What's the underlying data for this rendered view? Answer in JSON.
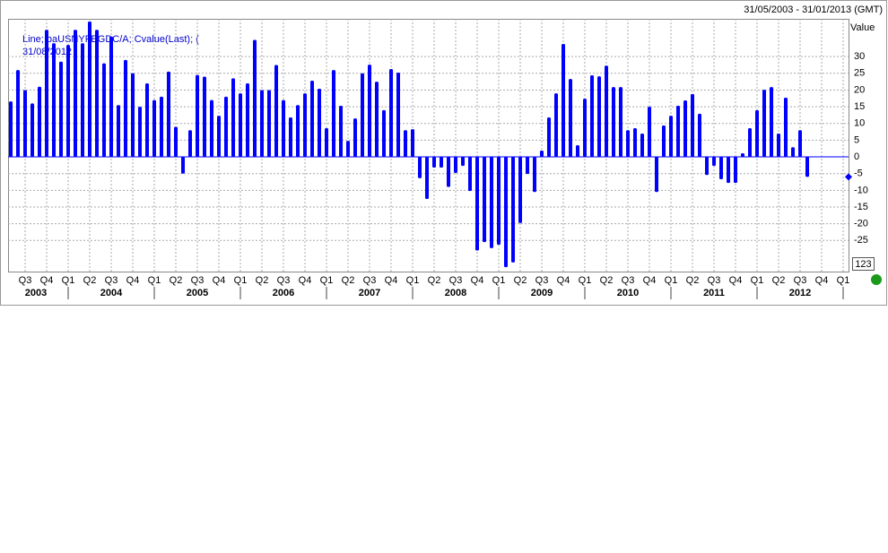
{
  "chart_data": {
    "type": "bar",
    "title": "31/05/2003 - 31/01/2013 (GMT)",
    "y_axis_label": "Value",
    "legend_lines": [
      "Line; baUSNYFEGDC/A; Cvalue(Last); (",
      "31/08/2012"
    ],
    "button_label": "123",
    "color": "#0000ff",
    "values": [
      16.6,
      26,
      20,
      16,
      21,
      38,
      34,
      28.5,
      33.5,
      38,
      34,
      40.5,
      38,
      28,
      36,
      15.5,
      29,
      25,
      15,
      22,
      17,
      18,
      25.5,
      9,
      -5,
      8,
      24.5,
      24,
      17,
      12.3,
      18,
      23.5,
      19,
      22,
      35,
      20,
      20,
      27.5,
      17,
      11.8,
      15.5,
      19,
      22.8,
      20.4,
      8.6,
      26,
      15.3,
      4.8,
      11.5,
      25,
      27.6,
      22.5,
      14,
      26.3,
      25.2,
      8,
      8.3,
      -6.4,
      -12.6,
      -3.2,
      -3.2,
      -9,
      -4.8,
      -2.7,
      -10.2,
      -28,
      -25.5,
      -27.3,
      -26.3,
      -33,
      -31.6,
      -19.8,
      -5.1,
      -10.5,
      1.9,
      11.8,
      19,
      33.8,
      23.3,
      3.5,
      17.4,
      24.4,
      24.1,
      27.3,
      20.9,
      20.9,
      8,
      8.6,
      7,
      15,
      -10.5,
      9.4,
      12.3,
      15.3,
      16.9,
      18.8,
      12.9,
      -5.4,
      -2.7,
      -6.7,
      -7.8,
      -7.8,
      1.1,
      8.6,
      14,
      20.1,
      20.9,
      7,
      17.7,
      2.9,
      8,
      -6
    ],
    "quarters": [
      "Q3",
      "Q4",
      "Q1",
      "Q2",
      "Q3",
      "Q4",
      "Q1",
      "Q2",
      "Q3",
      "Q4",
      "Q1",
      "Q2",
      "Q3",
      "Q4",
      "Q1",
      "Q2",
      "Q3",
      "Q4",
      "Q1",
      "Q2",
      "Q3",
      "Q4",
      "Q1",
      "Q2",
      "Q3",
      "Q4",
      "Q1",
      "Q2",
      "Q3",
      "Q4",
      "Q1",
      "Q2",
      "Q3",
      "Q4",
      "Q1",
      "Q2",
      "Q3",
      "Q4",
      "Q1"
    ],
    "years": [
      "2003",
      "2004",
      "2005",
      "2006",
      "2007",
      "2008",
      "2009",
      "2010",
      "2011",
      "2012"
    ],
    "ylim": [
      -34.3,
      41.3
    ],
    "yticks": [
      -25,
      -20,
      -15,
      -10,
      -5,
      0,
      5,
      10,
      15,
      20,
      25,
      30
    ],
    "grid": true
  }
}
